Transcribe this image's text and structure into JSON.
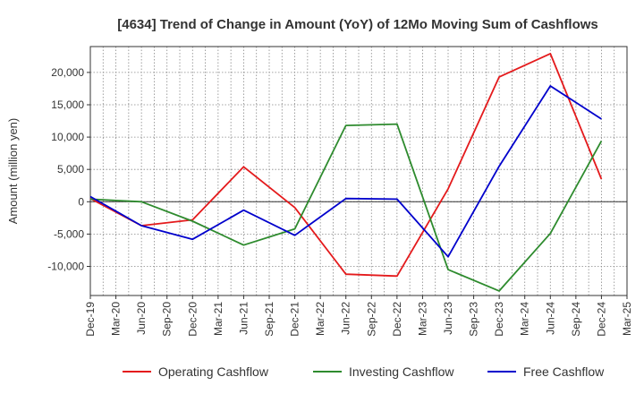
{
  "chart_data": {
    "type": "line",
    "title": "[4634]  Trend of Change in Amount (YoY) of 12Mo Moving Sum of Cashflows",
    "xlabel": "",
    "ylabel": "Amount (million yen)",
    "ylim": [
      -14500,
      24000
    ],
    "yticks": [
      -10000,
      -5000,
      0,
      5000,
      10000,
      15000,
      20000
    ],
    "ytick_labels": [
      "-10,000",
      "-5,000",
      "0",
      "5,000",
      "10,000",
      "15,000",
      "20,000"
    ],
    "categories": [
      "Dec-19",
      "Mar-20",
      "Jun-20",
      "Sep-20",
      "Dec-20",
      "Mar-21",
      "Jun-21",
      "Sep-21",
      "Dec-21",
      "Mar-22",
      "Jun-22",
      "Sep-22",
      "Dec-22",
      "Mar-23",
      "Jun-23",
      "Sep-23",
      "Dec-23",
      "Mar-24",
      "Jun-24",
      "Sep-24",
      "Dec-24",
      "Mar-25"
    ],
    "grid": true,
    "legend_position": "bottom",
    "series": [
      {
        "name": "Operating Cashflow",
        "color": "#e41a1c",
        "x": [
          "Dec-19",
          "Jun-20",
          "Dec-20",
          "Jun-21",
          "Dec-21",
          "Jun-22",
          "Dec-22",
          "Jun-23",
          "Dec-23",
          "Jun-24",
          "Dec-24"
        ],
        "values": [
          500,
          -3700,
          -2800,
          5400,
          -900,
          -11200,
          -11500,
          2000,
          19300,
          22900,
          3500
        ]
      },
      {
        "name": "Investing Cashflow",
        "color": "#2e8b2e",
        "x": [
          "Dec-19",
          "Jun-20",
          "Dec-20",
          "Jun-21",
          "Dec-21",
          "Jun-22",
          "Dec-22",
          "Jun-23",
          "Dec-23",
          "Jun-24",
          "Dec-24"
        ],
        "values": [
          400,
          0,
          -3000,
          -6700,
          -4200,
          11800,
          12000,
          -10500,
          -13800,
          -4900,
          9400
        ]
      },
      {
        "name": "Free Cashflow",
        "color": "#0000cc",
        "x": [
          "Dec-19",
          "Jun-20",
          "Dec-20",
          "Jun-21",
          "Dec-21",
          "Jun-22",
          "Dec-22",
          "Jun-23",
          "Dec-23",
          "Jun-24",
          "Dec-24"
        ],
        "values": [
          800,
          -3700,
          -5800,
          -1300,
          -5200,
          500,
          400,
          -8500,
          5500,
          17900,
          12800
        ]
      }
    ]
  }
}
